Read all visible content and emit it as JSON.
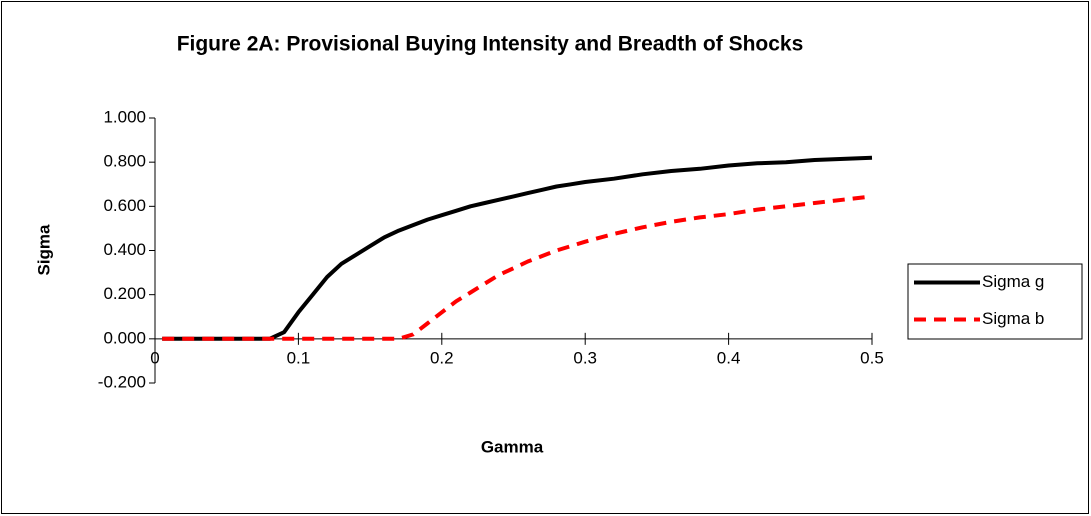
{
  "chart_data": {
    "type": "line",
    "title": "Figure 2A: Provisional Buying Intensity and Breadth of Shocks",
    "x_label": "Gamma",
    "y_label": "Sigma",
    "x": [
      0.005,
      0.02,
      0.04,
      0.06,
      0.08,
      0.09,
      0.1,
      0.11,
      0.12,
      0.13,
      0.14,
      0.15,
      0.16,
      0.17,
      0.18,
      0.19,
      0.2,
      0.21,
      0.22,
      0.23,
      0.24,
      0.25,
      0.26,
      0.27,
      0.28,
      0.29,
      0.3,
      0.32,
      0.34,
      0.36,
      0.38,
      0.4,
      0.42,
      0.44,
      0.46,
      0.48,
      0.5
    ],
    "series": [
      {
        "name": "Sigma g",
        "color": "#000000",
        "dashed": false,
        "values": [
          0,
          0,
          0,
          0,
          0,
          0.03,
          0.12,
          0.2,
          0.28,
          0.34,
          0.38,
          0.42,
          0.46,
          0.49,
          0.515,
          0.54,
          0.56,
          0.58,
          0.6,
          0.615,
          0.63,
          0.645,
          0.66,
          0.675,
          0.69,
          0.7,
          0.71,
          0.725,
          0.745,
          0.76,
          0.77,
          0.785,
          0.795,
          0.8,
          0.81,
          0.815,
          0.82
        ]
      },
      {
        "name": "Sigma b",
        "color": "#ff0000",
        "dashed": true,
        "values": [
          0,
          0,
          0,
          0,
          0,
          0,
          0,
          0,
          0,
          0,
          0,
          0,
          0,
          0,
          0.02,
          0.07,
          0.12,
          0.17,
          0.21,
          0.25,
          0.29,
          0.32,
          0.35,
          0.375,
          0.4,
          0.42,
          0.44,
          0.475,
          0.505,
          0.53,
          0.55,
          0.565,
          0.585,
          0.6,
          0.615,
          0.63,
          0.645
        ]
      }
    ],
    "xlim": [
      0,
      0.5
    ],
    "xticks": [
      0,
      0.1,
      0.2,
      0.3,
      0.4,
      0.5
    ],
    "ylim": [
      -0.2,
      1
    ],
    "yticks": [
      {
        "value": -0.2,
        "label": "-0.200"
      },
      {
        "value": 0,
        "label": "0.000"
      },
      {
        "value": 0.2,
        "label": "0.200"
      },
      {
        "value": 0.4,
        "label": "0.400"
      },
      {
        "value": 0.6,
        "label": "0.600"
      },
      {
        "value": 0.8,
        "label": "0.800"
      },
      {
        "value": 1,
        "label": "1.000"
      }
    ],
    "grid": false,
    "legend": "right"
  }
}
